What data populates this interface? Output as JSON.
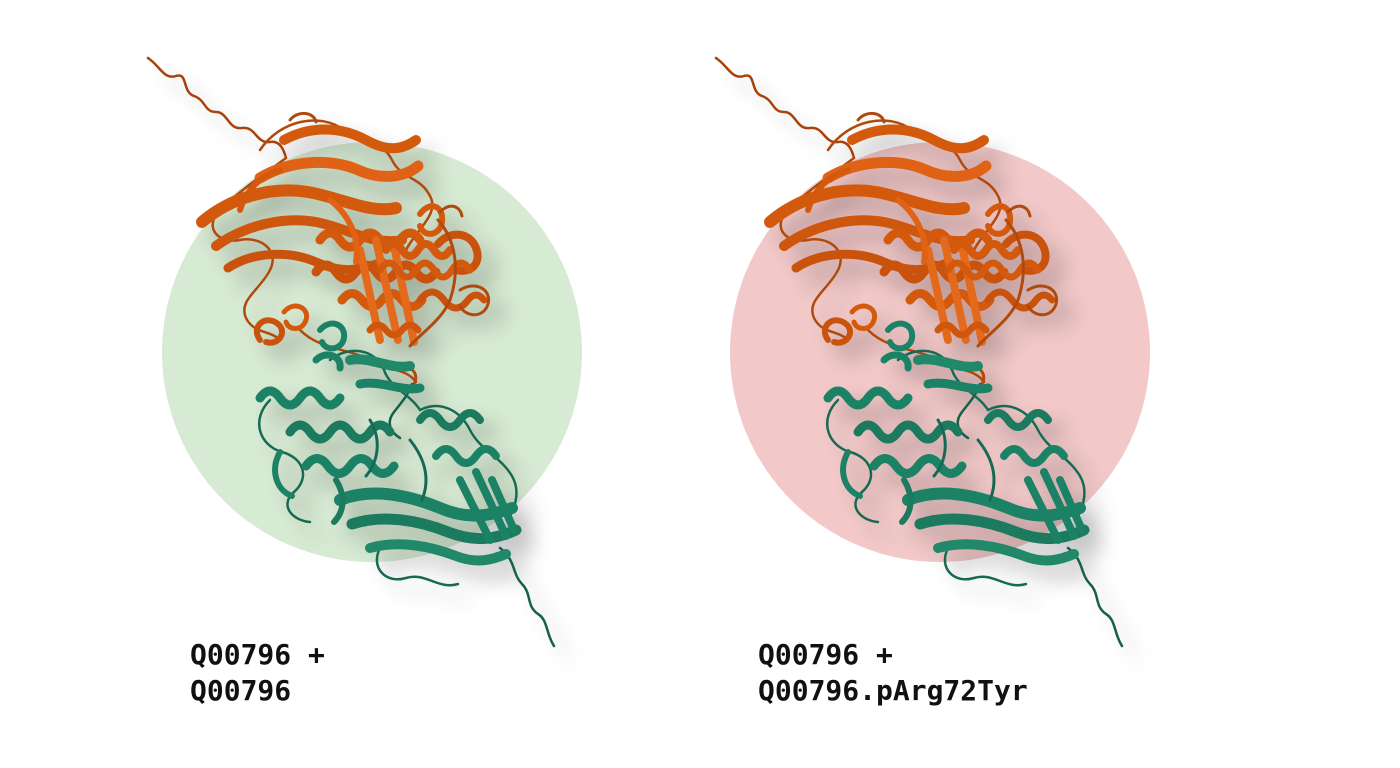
{
  "colors": {
    "chain_a": "#d35a0c",
    "chain_a_dark": "#a8430a",
    "chain_b": "#1f8266",
    "chain_b_dark": "#16604b",
    "halo_wildtype": "#d7ead3",
    "halo_variant": "#f2c8c8"
  },
  "panels": [
    {
      "caption_line1": "Q00796 +",
      "caption_line2": "Q00796"
    },
    {
      "caption_line1": "Q00796 +",
      "caption_line2": "Q00796.pArg72Tyr"
    }
  ]
}
